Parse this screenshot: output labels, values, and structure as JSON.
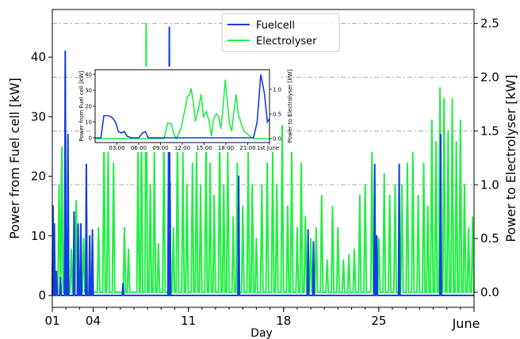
{
  "chart_data": [
    {
      "type": "line",
      "xlabel": "Day",
      "ylabel_left": "Power from Fuel cell [kW]",
      "ylabel_right": "Power to Electrolyser [kW]",
      "x_range": [
        1,
        32
      ],
      "ylim_left": [
        -2,
        48
      ],
      "ylim_right": [
        -0.14,
        2.63
      ],
      "x_ticks": [
        {
          "day": 1,
          "label": "01"
        },
        {
          "day": 4,
          "label": "04"
        },
        {
          "day": 11,
          "label": "11"
        },
        {
          "day": 18,
          "label": "18"
        },
        {
          "day": 25,
          "label": "25"
        },
        {
          "day": 32,
          "label": "June"
        }
      ],
      "y_ticks_left": [
        {
          "v": 0,
          "label": "0"
        },
        {
          "v": 10,
          "label": "10"
        },
        {
          "v": 20,
          "label": "20"
        },
        {
          "v": 30,
          "label": "30"
        },
        {
          "v": 40,
          "label": "40"
        }
      ],
      "y_ticks_right": [
        {
          "v": 0.0,
          "label": "0.0"
        },
        {
          "v": 0.5,
          "label": "0.5"
        },
        {
          "v": 1.0,
          "label": "1.0"
        },
        {
          "v": 1.5,
          "label": "1.5"
        },
        {
          "v": 2.0,
          "label": "2.0"
        },
        {
          "v": 2.5,
          "label": "2.5"
        }
      ],
      "grid_right": [
        1.0,
        1.5,
        2.0,
        2.5
      ],
      "legend": {
        "placement": "top-center",
        "entries": [
          {
            "name": "Fuelcell",
            "color": "#1040e0"
          },
          {
            "name": "Electrolyser",
            "color": "#22ee44"
          }
        ]
      },
      "series": [
        {
          "name": "Fuelcell",
          "axis": "left",
          "color": "#1040e0",
          "spikes": [
            [
              1.05,
              15
            ],
            [
              1.15,
              12
            ],
            [
              1.3,
              4
            ],
            [
              1.95,
              41
            ],
            [
              2.15,
              27
            ],
            [
              2.6,
              14
            ],
            [
              2.9,
              12
            ],
            [
              3.1,
              12
            ],
            [
              3.5,
              22
            ],
            [
              3.75,
              10
            ],
            [
              3.95,
              11
            ],
            [
              9.6,
              45
            ],
            [
              9.55,
              25
            ],
            [
              9.65,
              19
            ],
            [
              14.7,
              20
            ],
            [
              19.8,
              11
            ],
            [
              20.2,
              9
            ],
            [
              24.7,
              22
            ],
            [
              24.85,
              10
            ],
            [
              26.5,
              22
            ],
            [
              29.55,
              27
            ],
            [
              1.6,
              3
            ],
            [
              6.2,
              2
            ]
          ]
        },
        {
          "name": "Electrolyser",
          "axis": "right",
          "color": "#22ee44",
          "spikes": [
            [
              1.5,
              1.0
            ],
            [
              1.7,
              1.35
            ],
            [
              2.4,
              0.4
            ],
            [
              2.75,
              0.85
            ],
            [
              3.3,
              0.5
            ],
            [
              4.4,
              0.6
            ],
            [
              4.8,
              1.5
            ],
            [
              5.1,
              1.3
            ],
            [
              5.5,
              1.2
            ],
            [
              6.3,
              0.6
            ],
            [
              6.6,
              0.4
            ],
            [
              7.3,
              1.3
            ],
            [
              7.55,
              1.45
            ],
            [
              7.9,
              2.5
            ],
            [
              8.2,
              1.0
            ],
            [
              8.5,
              1.3
            ],
            [
              8.8,
              0.45
            ],
            [
              9.2,
              1.4
            ],
            [
              9.9,
              0.6
            ],
            [
              10.2,
              1.5
            ],
            [
              10.6,
              1.3
            ],
            [
              10.9,
              1.0
            ],
            [
              11.3,
              1.2
            ],
            [
              11.6,
              1.3
            ],
            [
              11.9,
              1.0
            ],
            [
              12.3,
              1.45
            ],
            [
              12.6,
              1.2
            ],
            [
              12.9,
              0.9
            ],
            [
              13.3,
              1.5
            ],
            [
              13.6,
              1.0
            ],
            [
              13.9,
              1.3
            ],
            [
              14.3,
              0.7
            ],
            [
              14.6,
              1.2
            ],
            [
              15.0,
              0.8
            ],
            [
              15.4,
              1.3
            ],
            [
              15.7,
              1.0
            ],
            [
              16.0,
              0.5
            ],
            [
              16.4,
              1.0
            ],
            [
              16.8,
              1.2
            ],
            [
              17.2,
              1.3
            ],
            [
              17.5,
              1.0
            ],
            [
              17.9,
              1.55
            ],
            [
              18.3,
              0.8
            ],
            [
              18.6,
              1.3
            ],
            [
              19.0,
              0.6
            ],
            [
              19.3,
              1.2
            ],
            [
              19.6,
              0.7
            ],
            [
              20.0,
              0.5
            ],
            [
              20.4,
              0.6
            ],
            [
              20.8,
              0.9
            ],
            [
              21.2,
              0.3
            ],
            [
              21.6,
              0.8
            ],
            [
              22.0,
              0.6
            ],
            [
              22.4,
              0.3
            ],
            [
              22.8,
              0.35
            ],
            [
              23.2,
              0.4
            ],
            [
              23.6,
              0.9
            ],
            [
              24.0,
              1.0
            ],
            [
              24.5,
              1.3
            ],
            [
              25.0,
              0.5
            ],
            [
              25.4,
              1.1
            ],
            [
              25.8,
              0.9
            ],
            [
              26.2,
              1.0
            ],
            [
              26.7,
              1.0
            ],
            [
              27.1,
              1.2
            ],
            [
              27.5,
              1.3
            ],
            [
              27.9,
              0.9
            ],
            [
              28.3,
              1.2
            ],
            [
              28.6,
              0.8
            ],
            [
              28.9,
              1.6
            ],
            [
              29.2,
              1.4
            ],
            [
              29.5,
              1.9
            ],
            [
              29.8,
              1.8
            ],
            [
              30.1,
              1.5
            ],
            [
              30.4,
              1.8
            ],
            [
              30.7,
              1.4
            ],
            [
              31.0,
              1.6
            ],
            [
              31.3,
              1.0
            ],
            [
              31.6,
              0.6
            ],
            [
              31.9,
              0.7
            ]
          ]
        }
      ]
    },
    {
      "type": "line",
      "inset": true,
      "ylabel_left": "Power from Fuel cell [kW]",
      "ylabel_right": "Power to Electrolyser [kW]",
      "x_range": [
        0,
        24
      ],
      "ylim_left": [
        -3,
        43
      ],
      "ylim_right": [
        -0.08,
        1.4
      ],
      "x_ticks": [
        {
          "h": 3,
          "label": "03:00"
        },
        {
          "h": 6,
          "label": "06:00"
        },
        {
          "h": 9,
          "label": "09:00"
        },
        {
          "h": 12,
          "label": "12:00"
        },
        {
          "h": 15,
          "label": "15:00"
        },
        {
          "h": 18,
          "label": "18:00"
        },
        {
          "h": 21,
          "label": "21:00"
        },
        {
          "h": 24,
          "label": "1st June"
        }
      ],
      "y_ticks_left": [
        {
          "v": 0,
          "label": "0"
        },
        {
          "v": 10,
          "label": "10"
        },
        {
          "v": 20,
          "label": "20"
        },
        {
          "v": 30,
          "label": "30"
        },
        {
          "v": 40,
          "label": "40"
        }
      ],
      "y_ticks_right": [
        {
          "v": 0.0,
          "label": "0.0"
        },
        {
          "v": 0.5,
          "label": "0.5"
        },
        {
          "v": 1.0,
          "label": "1.0"
        }
      ],
      "series": [
        {
          "name": "Fuelcell",
          "axis": "left",
          "color": "#1040e0",
          "points": [
            [
              0,
              0
            ],
            [
              0.8,
              0
            ],
            [
              1.2,
              14
            ],
            [
              1.8,
              14
            ],
            [
              2.3,
              13
            ],
            [
              2.8,
              10
            ],
            [
              3.2,
              4
            ],
            [
              3.6,
              3
            ],
            [
              4.0,
              4
            ],
            [
              4.4,
              1
            ],
            [
              5.0,
              0
            ],
            [
              6.0,
              0
            ],
            [
              6.5,
              3
            ],
            [
              6.9,
              4
            ],
            [
              7.3,
              0
            ],
            [
              8.5,
              0
            ],
            [
              12,
              0
            ],
            [
              20,
              0
            ],
            [
              21.8,
              0
            ],
            [
              22.3,
              10
            ],
            [
              22.8,
              40
            ],
            [
              23.3,
              28
            ],
            [
              23.7,
              10
            ],
            [
              24,
              12
            ]
          ]
        },
        {
          "name": "Electrolyser",
          "axis": "right",
          "color": "#22ee44",
          "points": [
            [
              0,
              0
            ],
            [
              9.5,
              0
            ],
            [
              10.0,
              0.32
            ],
            [
              10.5,
              0.3
            ],
            [
              10.8,
              0.1
            ],
            [
              11.2,
              0
            ],
            [
              11.8,
              0.2
            ],
            [
              12.3,
              0.55
            ],
            [
              12.7,
              0.85
            ],
            [
              13.0,
              0.9
            ],
            [
              13.2,
              1.02
            ],
            [
              13.5,
              0.75
            ],
            [
              13.8,
              0.35
            ],
            [
              14.2,
              0.6
            ],
            [
              14.6,
              0.9
            ],
            [
              14.9,
              0.45
            ],
            [
              15.3,
              0.55
            ],
            [
              15.7,
              0.35
            ],
            [
              16.0,
              0.05
            ],
            [
              16.3,
              0.4
            ],
            [
              16.7,
              0.5
            ],
            [
              17.0,
              0.45
            ],
            [
              17.3,
              0.2
            ],
            [
              17.6,
              0.6
            ],
            [
              17.9,
              1.2
            ],
            [
              18.2,
              0.75
            ],
            [
              18.5,
              0.3
            ],
            [
              18.8,
              0.15
            ],
            [
              19.1,
              0.55
            ],
            [
              19.4,
              0.9
            ],
            [
              19.7,
              0.5
            ],
            [
              20.1,
              0.3
            ],
            [
              20.5,
              0.15
            ],
            [
              20.9,
              0.1
            ],
            [
              21.3,
              0.05
            ],
            [
              21.8,
              0
            ],
            [
              24,
              0
            ]
          ]
        }
      ]
    }
  ]
}
